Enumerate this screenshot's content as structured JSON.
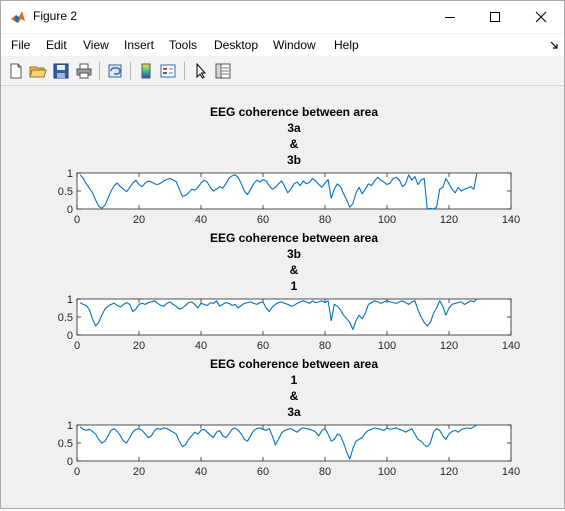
{
  "window": {
    "title": "Figure 2"
  },
  "menu": {
    "items": [
      "File",
      "Edit",
      "View",
      "Insert",
      "Tools",
      "Desktop",
      "Window",
      "Help"
    ]
  },
  "toolbar": {
    "icons": [
      "new-figure-icon",
      "open-file-icon",
      "save-icon",
      "print-icon",
      "link-icon",
      "colorbar-icon",
      "legend-icon",
      "pointer-icon",
      "property-inspector-icon"
    ]
  },
  "colors": {
    "line": "#0072BD",
    "axes_bg": "#ffffff",
    "figure_bg": "#f0f0f0"
  },
  "chart_data": [
    {
      "type": "line",
      "title": [
        "EEG coherence between area",
        "3a",
        "&",
        "3b"
      ],
      "xlim": [
        0,
        140
      ],
      "ylim": [
        0,
        1
      ],
      "xticks": [
        0,
        20,
        40,
        60,
        80,
        100,
        120,
        140
      ],
      "yticks": [
        0,
        0.5,
        1
      ],
      "grid": false,
      "series": [
        {
          "x_start": 1,
          "x_step": 1,
          "values": [
            0.95,
            0.85,
            0.7,
            0.58,
            0.45,
            0.25,
            0.08,
            0.02,
            0.1,
            0.3,
            0.5,
            0.65,
            0.72,
            0.62,
            0.55,
            0.48,
            0.6,
            0.72,
            0.8,
            0.68,
            0.62,
            0.72,
            0.78,
            0.75,
            0.7,
            0.68,
            0.72,
            0.78,
            0.82,
            0.85,
            0.8,
            0.76,
            0.55,
            0.35,
            0.38,
            0.45,
            0.55,
            0.52,
            0.6,
            0.72,
            0.8,
            0.75,
            0.6,
            0.5,
            0.55,
            0.62,
            0.58,
            0.7,
            0.85,
            0.92,
            0.95,
            0.88,
            0.7,
            0.5,
            0.4,
            0.55,
            0.7,
            0.8,
            0.75,
            0.82,
            0.78,
            0.65,
            0.55,
            0.6,
            0.7,
            0.78,
            0.62,
            0.45,
            0.55,
            0.7,
            0.75,
            0.65,
            0.78,
            0.7,
            0.74,
            0.85,
            0.78,
            0.68,
            0.6,
            0.72,
            0.82,
            0.3,
            0.55,
            0.7,
            0.62,
            0.42,
            0.25,
            0.05,
            0.15,
            0.45,
            0.6,
            0.42,
            0.55,
            0.7,
            0.65,
            0.78,
            0.88,
            0.8,
            0.75,
            0.68,
            0.72,
            0.85,
            0.88,
            0.8,
            0.62,
            0.7,
            0.95,
            0.8,
            0.9,
            0.68,
            0.8,
            0.85,
            0.0,
            0.02,
            0.0,
            0.05,
            0.55,
            0.6,
            0.85,
            0.7,
            0.55,
            0.45,
            0.6,
            0.5,
            0.55,
            0.58,
            0.62,
            0.55,
            1.0
          ]
        }
      ]
    },
    {
      "type": "line",
      "title": [
        "EEG coherence between area",
        "3b",
        "&",
        "1"
      ],
      "xlim": [
        0,
        140
      ],
      "ylim": [
        0,
        1
      ],
      "xticks": [
        0,
        20,
        40,
        60,
        80,
        100,
        120,
        140
      ],
      "yticks": [
        0,
        0.5,
        1
      ],
      "grid": false,
      "series": [
        {
          "x_start": 1,
          "x_step": 1,
          "values": [
            0.9,
            0.85,
            0.82,
            0.7,
            0.45,
            0.25,
            0.35,
            0.55,
            0.72,
            0.8,
            0.85,
            0.88,
            0.82,
            0.78,
            0.85,
            0.9,
            0.85,
            0.65,
            0.72,
            0.85,
            0.88,
            0.85,
            0.9,
            0.92,
            0.95,
            0.88,
            0.82,
            0.8,
            0.88,
            0.92,
            0.85,
            0.8,
            0.72,
            0.75,
            0.82,
            0.9,
            0.92,
            0.85,
            0.75,
            0.88,
            0.85,
            0.82,
            0.9,
            0.88,
            0.95,
            0.8,
            0.85,
            0.9,
            0.88,
            0.82,
            0.85,
            0.75,
            0.82,
            0.88,
            0.9,
            0.92,
            0.88,
            0.85,
            0.9,
            0.92,
            0.75,
            0.65,
            0.78,
            0.85,
            0.9,
            0.92,
            0.88,
            0.85,
            0.8,
            0.82,
            0.88,
            0.92,
            0.95,
            0.92,
            0.88,
            0.95,
            0.9,
            0.92,
            0.95,
            0.9,
            0.95,
            0.4,
            0.85,
            0.8,
            0.7,
            0.55,
            0.45,
            0.35,
            0.15,
            0.4,
            0.55,
            0.45,
            0.6,
            0.85,
            0.9,
            0.95,
            0.92,
            0.88,
            0.92,
            0.95,
            0.92,
            0.9,
            0.88,
            0.92,
            0.95,
            0.9,
            0.85,
            0.92,
            0.95,
            0.7,
            0.5,
            0.35,
            0.25,
            0.35,
            0.6,
            0.75,
            0.95,
            0.8,
            0.55,
            0.75,
            0.85,
            0.88,
            0.9,
            0.92,
            0.85,
            0.9,
            0.95,
            0.92,
            1.0
          ]
        }
      ]
    },
    {
      "type": "line",
      "title": [
        "EEG coherence between area",
        "1",
        "&",
        "3a"
      ],
      "xlim": [
        0,
        140
      ],
      "ylim": [
        0,
        1
      ],
      "xticks": [
        0,
        20,
        40,
        60,
        80,
        100,
        120,
        140
      ],
      "yticks": [
        0,
        0.5,
        1
      ],
      "grid": false,
      "series": [
        {
          "x_start": 1,
          "x_step": 1,
          "values": [
            0.95,
            0.88,
            0.85,
            0.88,
            0.82,
            0.75,
            0.6,
            0.5,
            0.55,
            0.7,
            0.85,
            0.9,
            0.82,
            0.7,
            0.55,
            0.5,
            0.65,
            0.8,
            0.88,
            0.9,
            0.85,
            0.75,
            0.65,
            0.7,
            0.85,
            0.9,
            0.88,
            0.92,
            0.9,
            0.85,
            0.8,
            0.75,
            0.55,
            0.4,
            0.45,
            0.6,
            0.7,
            0.8,
            0.75,
            0.85,
            0.88,
            0.8,
            0.72,
            0.65,
            0.8,
            0.85,
            0.7,
            0.65,
            0.75,
            0.88,
            0.92,
            0.85,
            0.75,
            0.6,
            0.55,
            0.7,
            0.85,
            0.9,
            0.92,
            0.88,
            0.85,
            0.9,
            0.7,
            0.45,
            0.6,
            0.78,
            0.85,
            0.88,
            0.9,
            0.85,
            0.8,
            0.88,
            0.92,
            0.9,
            0.88,
            0.85,
            0.8,
            0.7,
            0.85,
            0.9,
            0.75,
            0.55,
            0.6,
            0.75,
            0.7,
            0.5,
            0.25,
            0.05,
            0.35,
            0.55,
            0.6,
            0.65,
            0.78,
            0.85,
            0.88,
            0.92,
            0.9,
            0.88,
            0.85,
            0.92,
            0.88,
            0.9,
            0.92,
            0.88,
            0.85,
            0.8,
            0.85,
            0.9,
            0.75,
            0.6,
            0.55,
            0.45,
            0.4,
            0.5,
            0.8,
            0.9,
            0.85,
            0.7,
            0.6,
            0.75,
            0.82,
            0.85,
            0.8,
            0.88,
            0.9,
            0.92,
            0.9,
            0.95,
            1.0
          ]
        }
      ]
    }
  ]
}
